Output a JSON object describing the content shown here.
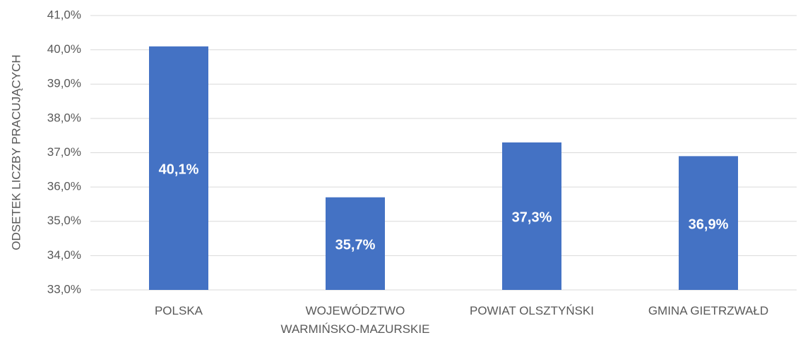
{
  "chart_data": {
    "type": "bar",
    "y_label": "ODSETEK LICZBY PRACUJĄCYCH",
    "categories": [
      "POLSKA",
      "WOJEWÓDZTWO WARMIŃSKO-MAZURSKIE",
      "POWIAT OLSZTYŃSKI",
      "GMINA GIETRZWAŁD"
    ],
    "values": [
      40.1,
      35.7,
      37.3,
      36.9
    ],
    "value_labels": [
      "40,1%",
      "35,7%",
      "37,3%",
      "36,9%"
    ],
    "color": "#4472c4",
    "ylim": [
      33,
      41
    ],
    "yticks": [
      {
        "value": 33,
        "label": "33,0%"
      },
      {
        "value": 34,
        "label": "34,0%"
      },
      {
        "value": 35,
        "label": "35,0%"
      },
      {
        "value": 36,
        "label": "36,0%"
      },
      {
        "value": 37,
        "label": "37,0%"
      },
      {
        "value": 38,
        "label": "38,0%"
      },
      {
        "value": 39,
        "label": "39,0%"
      },
      {
        "value": 40,
        "label": "40,0%"
      },
      {
        "value": 41,
        "label": "41,0%"
      }
    ],
    "grid": true
  }
}
